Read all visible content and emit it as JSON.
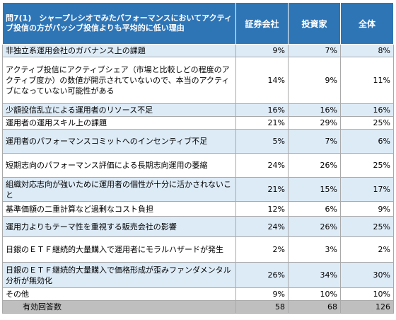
{
  "table": {
    "question": "問7(1)　シャープレシオでみたパフォーマンスにおいてアクティブ投信の方がパッシブ投信よりも平均的に低い理由",
    "headers": [
      "証券会社",
      "投資家",
      "全体"
    ],
    "rows": [
      {
        "label": "非独立系運用会社のガバナンス上の課題",
        "values": [
          "9%",
          "7%",
          "8%"
        ]
      },
      {
        "label": "アクティブ投信にアクティブシェア（市場と比較しどの程度のアクティブ度か）の数値が開示されていないので、本当のアクティブになっていない可能性がある",
        "values": [
          "14%",
          "9%",
          "11%"
        ]
      },
      {
        "label": "少額投信乱立による運用者のリソース不足",
        "values": [
          "16%",
          "16%",
          "16%"
        ]
      },
      {
        "label": "運用者の運用スキル上の課題",
        "values": [
          "21%",
          "29%",
          "25%"
        ]
      },
      {
        "label": "運用者のパフォーマンスコミットへのインセンティブ不足",
        "values": [
          "5%",
          "7%",
          "6%"
        ]
      },
      {
        "label": "短期志向のパフォーマンス評価による長期志向運用の萎縮",
        "values": [
          "24%",
          "26%",
          "25%"
        ]
      },
      {
        "label": "組織対応志向が強いために運用者の個性が十分に活かされないこと",
        "values": [
          "21%",
          "15%",
          "17%"
        ]
      },
      {
        "label": "基準価額の二重計算など過剰なコスト負担",
        "values": [
          "12%",
          "6%",
          "9%"
        ]
      },
      {
        "label": "運用力よりもテーマ性を重視する販売会社の影響",
        "values": [
          "24%",
          "26%",
          "25%"
        ]
      },
      {
        "label": "日銀のＥＴＦ継続的大量購入で運用者にモラルハザードが発生",
        "values": [
          "2%",
          "3%",
          "2%"
        ]
      },
      {
        "label": "日銀のＥＴＦ継続的大量購入で価格形成が歪みファンダメンタル分析が無効化",
        "values": [
          "26%",
          "34%",
          "30%"
        ]
      },
      {
        "label": "その他",
        "values": [
          "9%",
          "10%",
          "10%"
        ]
      }
    ],
    "total": {
      "label": "有効回答数",
      "values": [
        "58",
        "68",
        "126"
      ]
    }
  }
}
